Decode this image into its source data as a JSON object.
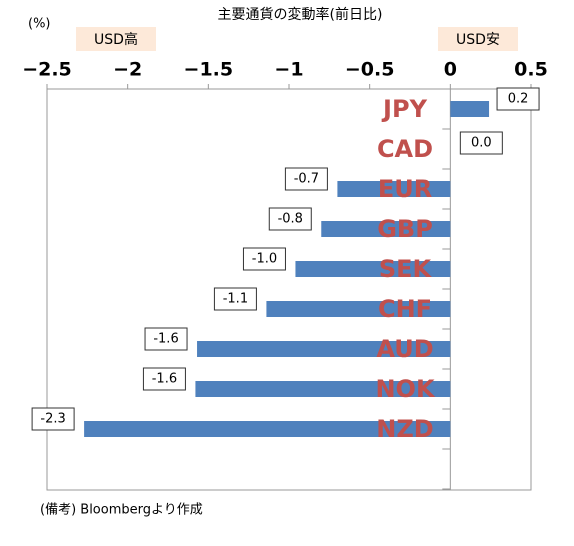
{
  "chart_data": {
    "type": "bar",
    "orientation": "horizontal",
    "title": "主要通貨の変動率(前日比)",
    "unit_label": "(%)",
    "left_annotation": "USD高",
    "right_annotation": "USD安",
    "note": "(備考) Bloombergより作成",
    "categories": [
      "JPY",
      "CAD",
      "EUR",
      "GBP",
      "SEK",
      "CHF",
      "AUD",
      "NOK",
      "NZD"
    ],
    "values": [
      0.24,
      0.0,
      -0.7,
      -0.8,
      -0.96,
      -1.14,
      -1.57,
      -1.58,
      -2.27
    ],
    "value_labels": [
      "0.2",
      "0.0",
      "-0.7",
      "-0.8",
      "-1.0",
      "-1.1",
      "-1.6",
      "-1.6",
      "-2.3"
    ],
    "color": "#4f81bd",
    "category_color": "#c0504d",
    "xlim": [
      -2.5,
      0.5
    ],
    "xticks": [
      {
        "value": -2.5,
        "label": "−2.5"
      },
      {
        "value": -2,
        "label": "−2"
      },
      {
        "value": -1.5,
        "label": "−1.5"
      },
      {
        "value": -1,
        "label": "−1"
      },
      {
        "value": -0.5,
        "label": "−0.5"
      },
      0,
      0.5
    ]
  }
}
